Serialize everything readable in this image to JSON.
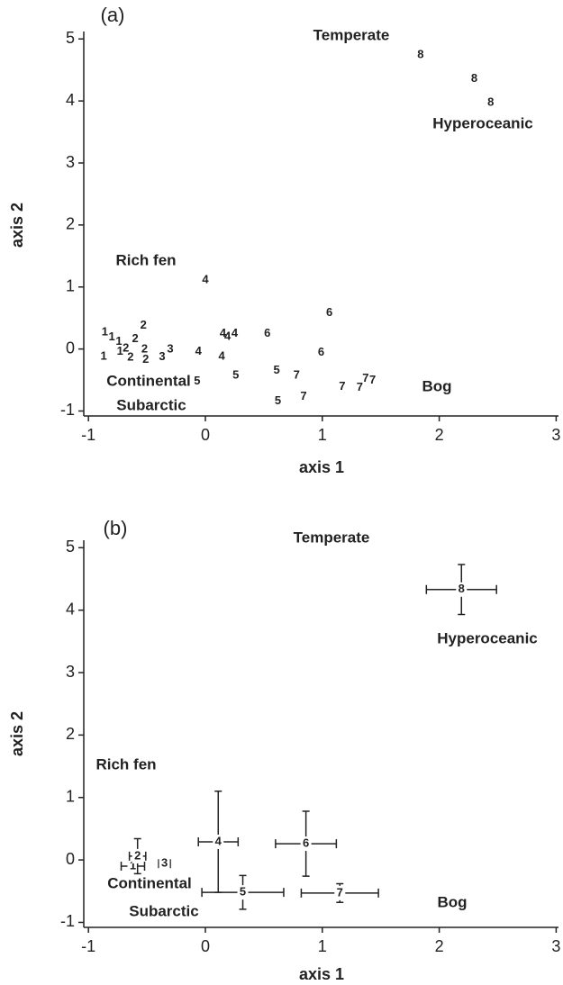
{
  "chart_data": [
    {
      "type": "scatter",
      "panel_label": "(a)",
      "xlabel": "axis 1",
      "ylabel": "axis 2",
      "xlim": [
        -1.04,
        3.02
      ],
      "ylim": [
        -1.08,
        5.12
      ],
      "xticks": [
        -1,
        0,
        1,
        2,
        3
      ],
      "yticks": [
        -1,
        0,
        1,
        2,
        3,
        4,
        5
      ],
      "annotations": [
        "Temperate",
        "Hyperoceanic",
        "Rich fen",
        "Continental",
        "Subarctic",
        "Bog"
      ],
      "point_labels": [
        "8",
        "8",
        "8",
        "4",
        "6",
        "6",
        "6",
        "1",
        "1",
        "1",
        "1",
        "1",
        "2",
        "2",
        "2",
        "2",
        "2",
        "2",
        "3",
        "3",
        "4",
        "4",
        "4",
        "4",
        "4",
        "5",
        "5",
        "5",
        "5",
        "7",
        "7",
        "7",
        "7",
        "7",
        "7"
      ],
      "x": [
        1.84,
        2.3,
        2.44,
        0.0,
        1.06,
        0.53,
        0.99,
        -0.86,
        -0.8,
        -0.74,
        -0.87,
        -0.73,
        -0.53,
        -0.6,
        -0.68,
        -0.52,
        -0.64,
        -0.51,
        -0.3,
        -0.37,
        0.15,
        0.19,
        0.25,
        -0.06,
        0.14,
        -0.07,
        0.26,
        0.61,
        0.62,
        0.78,
        0.84,
        1.17,
        1.32,
        1.37,
        1.43
      ],
      "values": [
        4.74,
        4.36,
        3.97,
        1.11,
        0.58,
        0.25,
        -0.06,
        0.27,
        0.19,
        0.12,
        -0.12,
        -0.04,
        0.38,
        0.16,
        0.01,
        -0.01,
        -0.14,
        -0.17,
        -0.01,
        -0.13,
        0.25,
        0.2,
        0.25,
        -0.04,
        -0.12,
        -0.52,
        -0.43,
        -0.35,
        -0.84,
        -0.43,
        -0.77,
        -0.61,
        -0.62,
        -0.48,
        -0.51
      ],
      "color": "#222222"
    },
    {
      "type": "errorbar",
      "panel_label": "(b)",
      "xlabel": "axis 1",
      "ylabel": "axis 2",
      "xlim": [
        -1.04,
        3.02
      ],
      "ylim": [
        -1.08,
        5.12
      ],
      "xticks": [
        -1,
        0,
        1,
        2,
        3
      ],
      "yticks": [
        -1,
        0,
        1,
        2,
        3,
        4,
        5
      ],
      "annotations": [
        "Temperate",
        "Hyperoceanic",
        "Rich fen",
        "Continental",
        "Subarctic",
        "Bog"
      ],
      "point_labels": [
        "1",
        "2",
        "3",
        "4",
        "5",
        "6",
        "7",
        "8"
      ],
      "x": [
        -0.62,
        -0.58,
        -0.35,
        0.11,
        0.32,
        0.86,
        1.15,
        2.19
      ],
      "values": [
        -0.1,
        0.06,
        -0.06,
        0.29,
        -0.52,
        0.26,
        -0.53,
        4.33
      ],
      "xerr": [
        0.1,
        0.07,
        0.05,
        0.17,
        0.35,
        0.26,
        0.33,
        0.3
      ],
      "yerr": [
        0.06,
        0.28,
        0.05,
        0.81,
        0.27,
        0.52,
        0.15,
        0.4
      ],
      "color": "#222222"
    }
  ]
}
